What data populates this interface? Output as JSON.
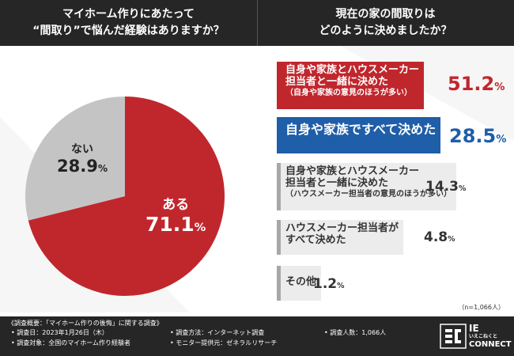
{
  "header": {
    "left_title": [
      "マイホーム作りにあたって",
      "“間取り”で悩んだ経験はありますか？"
    ],
    "right_title": [
      "現在の家の間取りは",
      "どのように決めましたか？"
    ]
  },
  "chart_data": [
    {
      "type": "pie",
      "title": "マイホーム作りにあたって“間取り”で悩んだ経験はありますか？",
      "categories": [
        "ある",
        "ない"
      ],
      "values": [
        71.1,
        28.9
      ],
      "value_labels": [
        "71.1",
        "28.9"
      ],
      "unit": "%",
      "colors": [
        "#c0272d",
        "#c4c4c4"
      ]
    },
    {
      "type": "bar",
      "title": "現在の家の間取りはどのように決めましたか？",
      "categories": [
        [
          "自身や家族とハウスメーカー",
          "担当者と一緒に決めた",
          "（自身や家族の意見のほうが多い）"
        ],
        [
          "自身や家族ですべて決めた"
        ],
        [
          "自身や家族とハウスメーカー",
          "担当者と一緒に決めた",
          "（ハウスメーカー担当者の意見のほうが多い）"
        ],
        [
          "ハウスメーカー担当者が",
          "すべて決めた"
        ],
        [
          "その他"
        ]
      ],
      "values": [
        51.2,
        28.5,
        14.3,
        4.8,
        1.2
      ],
      "value_labels": [
        "51.2",
        "28.5",
        "14.3",
        "4.8",
        "1.2"
      ],
      "unit": "%",
      "colors": [
        "#c0272d",
        "#1f5ea8",
        "#ececec",
        "#ececec",
        "#ececec"
      ]
    }
  ],
  "n_note": "（n=1,066人）",
  "footer": {
    "title": "《調査概要：「マイホーム作りの後悔」に関する調査》",
    "items": [
      "• 調査日：2023年1月26日（木）",
      "• 調査方法：インターネット調査",
      "• 調査人数：1,066人",
      "• 調査対象：全国のマイホーム作り経験者",
      "• モニター提供元：ゼネラルリサーチ"
    ]
  },
  "logo": {
    "top": "IE",
    "tagline": "いえこねくと",
    "bottom": "CONNECT"
  }
}
